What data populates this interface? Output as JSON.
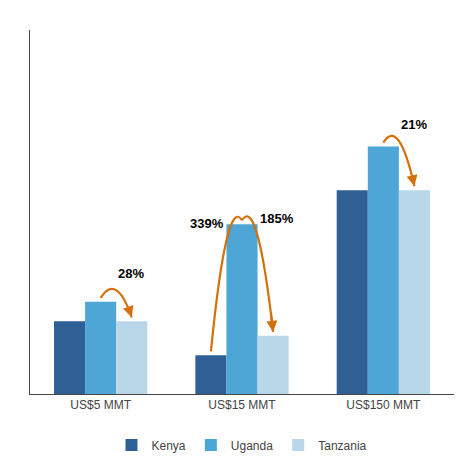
{
  "chart_data": {
    "type": "bar",
    "categories": [
      "US$5 MMT",
      "US$15 MMT",
      "US$150 MMT"
    ],
    "series": [
      {
        "name": "Kenya",
        "color": "#2E6096",
        "values": [
          1.5,
          0.8,
          4.2
        ]
      },
      {
        "name": "Uganda",
        "color": "#4DA6D6",
        "values": [
          1.9,
          3.5,
          5.1
        ]
      },
      {
        "name": "Tanzania",
        "color": "#B8D8EA",
        "values": [
          1.5,
          1.2,
          4.2
        ]
      }
    ],
    "ylim": [
      0,
      7.5
    ],
    "grid": false,
    "legend": "bottom",
    "tick_labels": "x",
    "annotations": [
      {
        "text": "28%",
        "category": "US$5 MMT",
        "from": "Uganda",
        "to": "Tanzania",
        "color": "#D4700A"
      },
      {
        "text": "339%",
        "category": "US$15 MMT",
        "from": "Kenya",
        "to": "Uganda",
        "color": "#D4700A"
      },
      {
        "text": "185%",
        "category": "US$15 MMT",
        "from": "Uganda",
        "to": "Tanzania",
        "color": "#D4700A"
      },
      {
        "text": "21%",
        "category": "US$150 MMT",
        "from": "Uganda",
        "to": "Tanzania",
        "color": "#D4700A"
      }
    ]
  }
}
